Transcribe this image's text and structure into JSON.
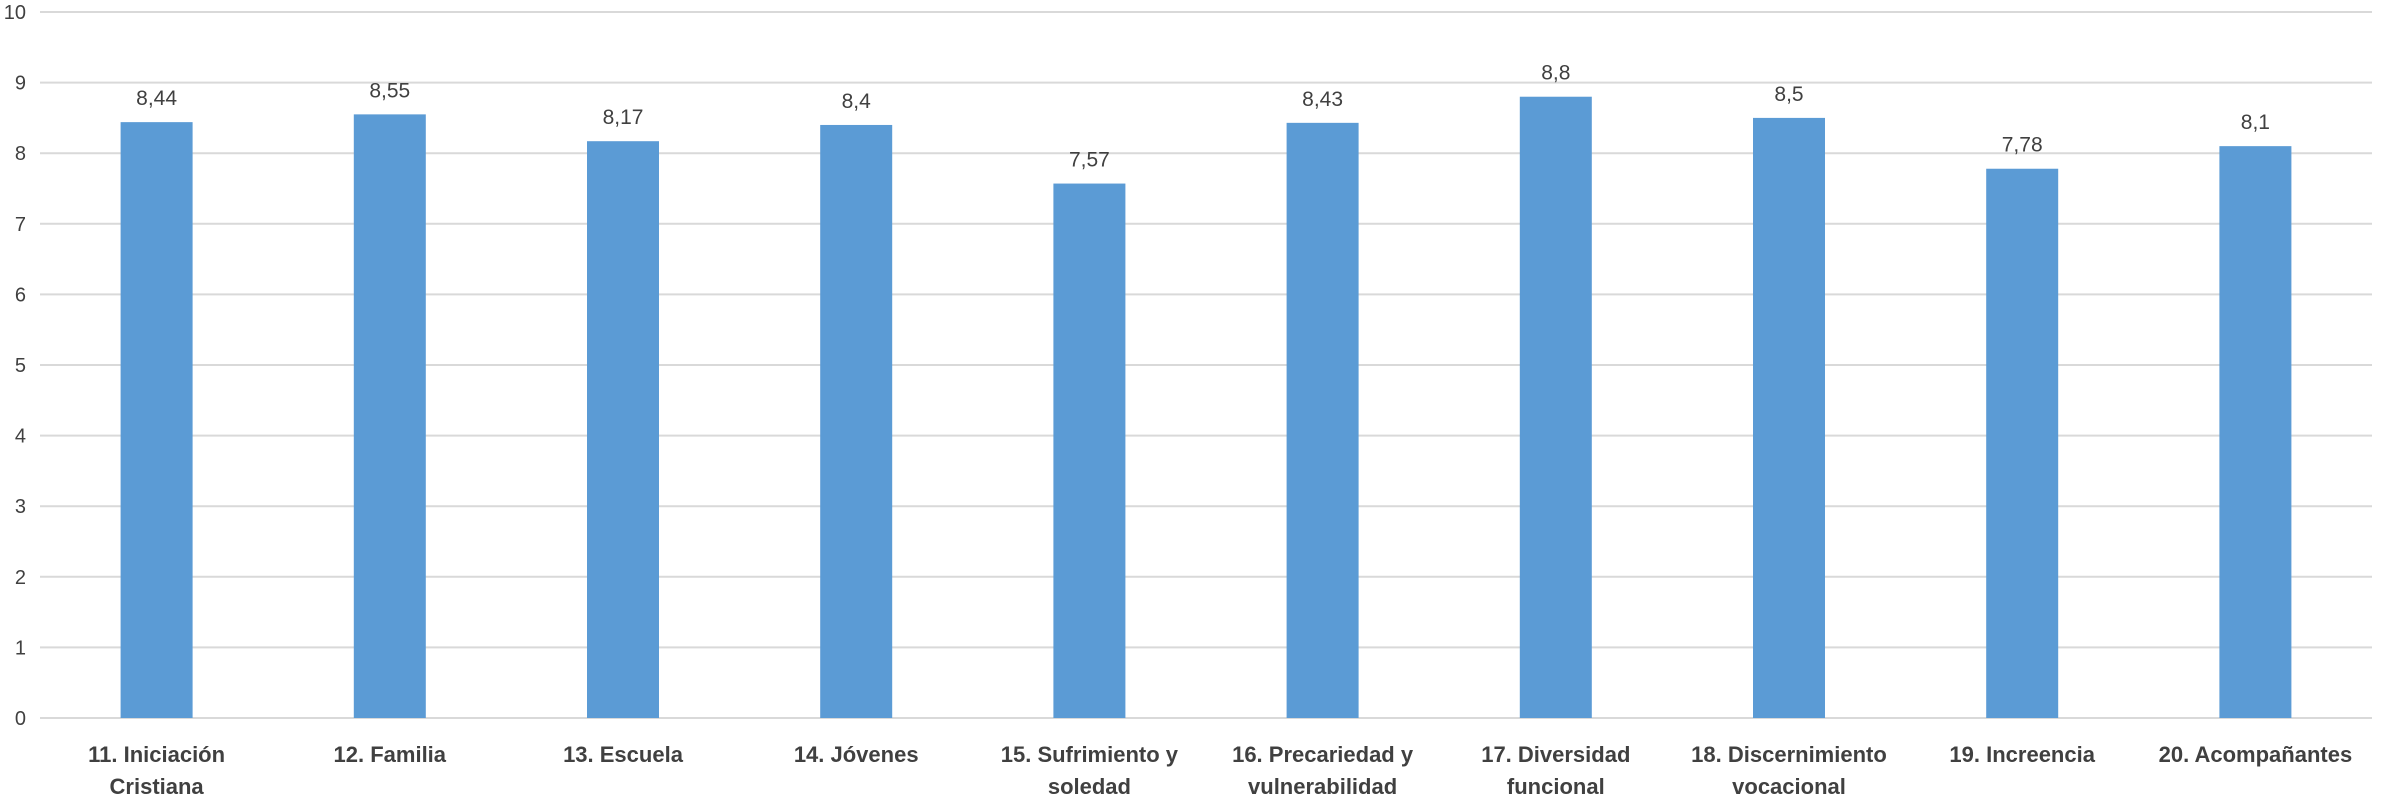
{
  "chart_data": {
    "type": "bar",
    "title": "",
    "xlabel": "",
    "ylabel": "",
    "ylim": [
      0,
      10
    ],
    "yticks": [
      "0",
      "1",
      "2",
      "3",
      "4",
      "5",
      "6",
      "7",
      "8",
      "9",
      "10"
    ],
    "grid": true,
    "legend": "none",
    "bar_color": "#5b9bd5",
    "categories": [
      [
        "11. Iniciación",
        "Cristiana"
      ],
      [
        "12. Familia"
      ],
      [
        "13. Escuela"
      ],
      [
        "14. Jóvenes"
      ],
      [
        "15. Sufrimiento y",
        "soledad"
      ],
      [
        "16. Precariedad y",
        "vulnerabilidad"
      ],
      [
        "17. Diversidad",
        "funcional"
      ],
      [
        "18. Discernimiento",
        "vocacional"
      ],
      [
        "19. Increencia"
      ],
      [
        "20. Acompañantes"
      ]
    ],
    "values": [
      8.44,
      8.55,
      8.17,
      8.4,
      7.57,
      8.43,
      8.8,
      8.5,
      7.78,
      8.1
    ],
    "value_labels": [
      "8,44",
      "8,55",
      "8,17",
      "8,4",
      "7,57",
      "8,43",
      "8,8",
      "8,5",
      "7,78",
      "8,1"
    ]
  }
}
